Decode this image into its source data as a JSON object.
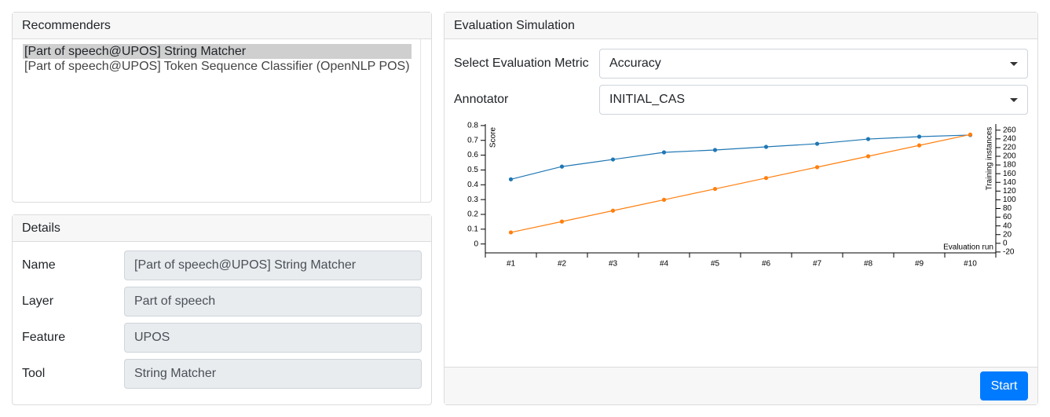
{
  "recommenders": {
    "title": "Recommenders",
    "items": [
      "[Part of speech@UPOS] String Matcher",
      "[Part of speech@UPOS] Token Sequence Classifier (OpenNLP POS)"
    ]
  },
  "details": {
    "title": "Details",
    "fields": [
      {
        "label": "Name",
        "value": "[Part of speech@UPOS] String Matcher"
      },
      {
        "label": "Layer",
        "value": "Part of speech"
      },
      {
        "label": "Feature",
        "value": "UPOS"
      },
      {
        "label": "Tool",
        "value": "String Matcher"
      }
    ]
  },
  "evaluation": {
    "title": "Evaluation Simulation",
    "metric_label": "Select Evaluation Metric",
    "metric": "Accuracy",
    "annotator_label": "Annotator",
    "annotator": "INITIAL_CAS",
    "button": "Start"
  },
  "chart_data": {
    "type": "line",
    "categories": [
      "#1",
      "#2",
      "#3",
      "#4",
      "#5",
      "#6",
      "#7",
      "#8",
      "#9",
      "#10"
    ],
    "series": [
      {
        "color": "#1f77b4",
        "values": [
          0.437,
          0.523,
          0.571,
          0.619,
          0.635,
          0.656,
          0.677,
          0.709,
          0.725,
          0.736
        ]
      },
      {
        "color": "#ff7f0e",
        "axis": "y2",
        "values": [
          25,
          50,
          75,
          100,
          125,
          150,
          175,
          200,
          225,
          250
        ]
      }
    ],
    "ylabel": "Score",
    "y2label": "Training instances",
    "xlabel": "Evaluation run",
    "ylim": [
      -0.06,
      0.81
    ],
    "yticks": [
      0,
      0.1,
      0.2,
      0.3,
      0.4,
      0.5,
      0.6,
      0.7,
      0.8
    ],
    "y2lim": [
      -22,
      274
    ],
    "y2ticks": [
      -20,
      0,
      20,
      40,
      60,
      80,
      100,
      120,
      140,
      160,
      180,
      200,
      220,
      240,
      260
    ]
  }
}
